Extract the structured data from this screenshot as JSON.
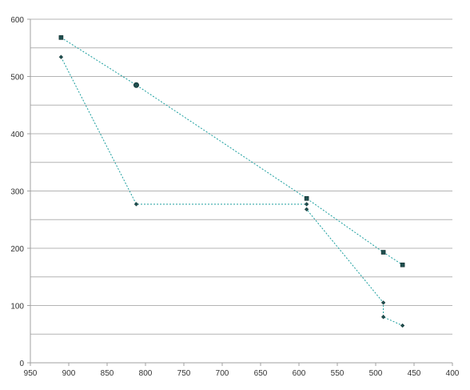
{
  "chart_data": {
    "type": "scatter",
    "title": "",
    "xlabel": "",
    "ylabel": "",
    "x_reversed": true,
    "xlim": [
      400,
      950
    ],
    "ylim": [
      0,
      600
    ],
    "x_ticks": [
      950,
      900,
      850,
      800,
      750,
      700,
      650,
      600,
      550,
      500,
      450,
      400
    ],
    "y_ticks": [
      0,
      100,
      200,
      300,
      400,
      500,
      600
    ],
    "grid": "horizontal",
    "legend": "none",
    "series": [
      {
        "marker": "square",
        "color": "#1f4f4f",
        "line_color": "#1a9e9e",
        "x": [
          910,
          812,
          590,
          490,
          465
        ],
        "y": [
          568,
          485,
          287,
          193,
          171
        ]
      },
      {
        "marker": "diamond",
        "color": "#1f4f4f",
        "line_color": "#1a9e9e",
        "x": [
          910,
          812,
          590,
          590,
          490,
          490,
          465
        ],
        "y": [
          534,
          277,
          277,
          268,
          105,
          80,
          65
        ]
      }
    ]
  }
}
